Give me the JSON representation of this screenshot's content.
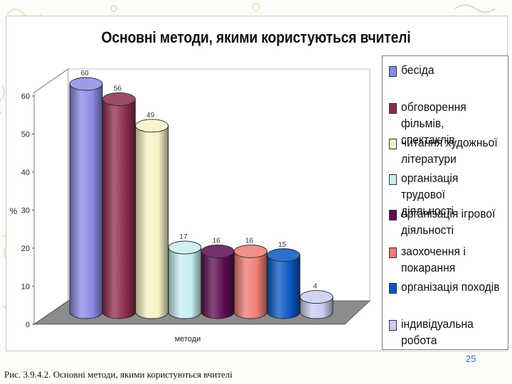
{
  "slide": {
    "page_number": "25",
    "caption": "Рис. 3.9.4.2. Основні методи, якими користуються вчителі"
  },
  "chart_data": {
    "type": "bar",
    "style": "3d-cylinder",
    "title": "Основні методи, якими користуються вчителі",
    "xlabel": "методи",
    "ylabel": "%",
    "ylim": [
      0,
      60
    ],
    "yticks": [
      0,
      10,
      20,
      30,
      40,
      50,
      60
    ],
    "grid": false,
    "legend_position": "right",
    "series": [
      {
        "name": "бесіда",
        "value": 60,
        "color": "#8a8ae6"
      },
      {
        "name": "обговорення фільмів, спектаклів",
        "value": 56,
        "color": "#8c2d4f"
      },
      {
        "name": "читання художньої літератури",
        "value": 49,
        "color": "#f7f2c4"
      },
      {
        "name": "організація трудової діяльності",
        "value": 17,
        "color": "#c6eef2"
      },
      {
        "name": "організація ігрової діяльності",
        "value": 16,
        "color": "#5c0c52"
      },
      {
        "name": "заохочення і покарання",
        "value": 16,
        "color": "#ef7b74"
      },
      {
        "name": "організація походів",
        "value": 15,
        "color": "#0b57c2"
      },
      {
        "name": "індивідуальна робота",
        "value": 4,
        "color": "#c9cdf2"
      }
    ]
  }
}
